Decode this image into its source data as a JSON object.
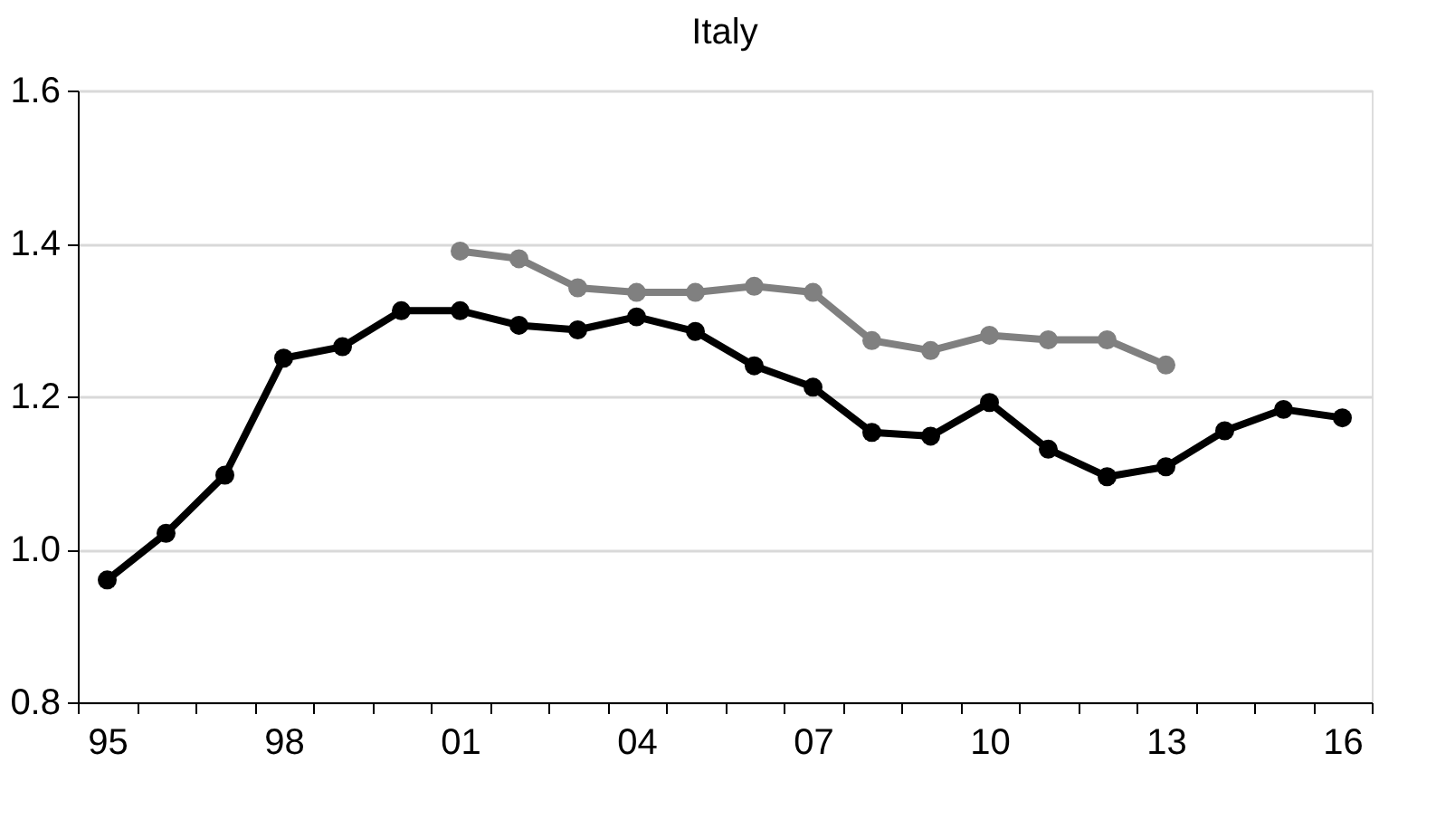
{
  "chart_data": {
    "type": "line",
    "title": "Italy",
    "marker": "circle",
    "line_style": "solid",
    "grid": "y",
    "legend": false,
    "categories": [
      "95",
      null,
      null,
      "98",
      null,
      null,
      "01",
      null,
      null,
      "04",
      null,
      null,
      "07",
      null,
      null,
      "10",
      null,
      null,
      "13",
      null,
      null,
      "16"
    ],
    "ylim": [
      0.8,
      1.6
    ],
    "yticks": [
      {
        "value": 0.8,
        "label": "0.8"
      },
      {
        "value": 1.0,
        "label": "1.0"
      },
      {
        "value": 1.2,
        "label": "1.2"
      },
      {
        "value": 1.4,
        "label": "1.4"
      },
      {
        "value": 1.6,
        "label": "1.6"
      }
    ],
    "series": [
      {
        "color": "#000000",
        "values": [
          0.96,
          1.021,
          1.097,
          1.25,
          1.265,
          1.312,
          1.312,
          1.293,
          1.287,
          1.304,
          1.285,
          1.24,
          1.212,
          1.153,
          1.148,
          1.192,
          1.131,
          1.095,
          1.108,
          1.155,
          1.183,
          1.172
        ]
      },
      {
        "color": "#808080",
        "values": [
          null,
          null,
          null,
          null,
          null,
          null,
          1.39,
          1.38,
          1.342,
          1.336,
          1.336,
          1.344,
          1.336,
          1.273,
          1.26,
          1.28,
          1.274,
          1.274,
          1.241,
          null,
          null,
          null
        ]
      }
    ]
  }
}
